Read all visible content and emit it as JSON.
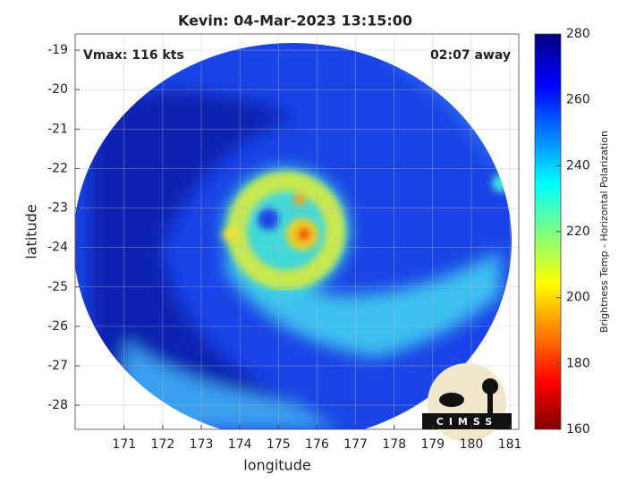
{
  "chart_data": {
    "type": "map",
    "title": "Kevin: 04-Mar-2023 13:15:00",
    "annotations": [
      "Vmax: 116 kts",
      "02:07 away"
    ],
    "logo": "CIMSS",
    "xlabel": "longitude",
    "ylabel": "latitude",
    "xlim": [
      169.73,
      181.23
    ],
    "xticks": [
      171,
      172,
      173,
      174,
      175,
      176,
      177,
      178,
      179,
      180,
      181
    ],
    "ylim": [
      -28.61,
      -18.59
    ],
    "yticks": [
      -28,
      -27,
      -26,
      -25,
      -24,
      -23,
      -22,
      -21,
      -20,
      -19
    ],
    "grid": true,
    "colorbar": {
      "label": "Brightness Temp - Horizontal Polarization",
      "lim": [
        160,
        280
      ],
      "ticks": [
        160,
        180,
        200,
        220,
        240,
        260,
        280
      ]
    }
  }
}
